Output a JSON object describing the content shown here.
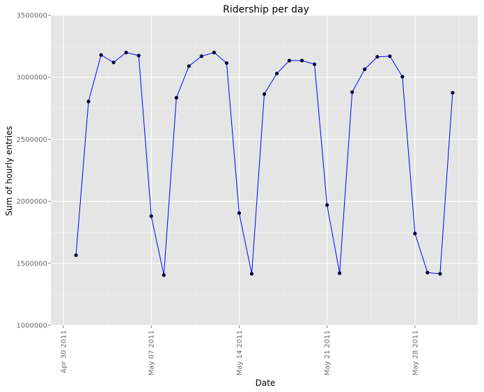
{
  "chart_data": {
    "type": "line",
    "title": "Ridership per day",
    "xlabel": "Date",
    "ylabel": "Sum of hourly entries",
    "ylim": [
      1000000,
      3500000
    ],
    "y_ticks": [
      1000000,
      1500000,
      2000000,
      2500000,
      3000000,
      3500000
    ],
    "y_tick_labels": [
      "1000000",
      "1500000",
      "2000000",
      "2500000",
      "3000000",
      "3500000"
    ],
    "x_ticks": [
      "2011-04-30",
      "2011-05-07",
      "2011-05-14",
      "2011-05-21",
      "2011-05-28"
    ],
    "x_tick_labels": [
      "Apr 30 2011",
      "May 07 2011",
      "May 14 2011",
      "May 21 2011",
      "May 28 2011"
    ],
    "xlim": [
      "2011-04-29",
      "2011-06-02"
    ],
    "grid": true,
    "line_color": "#0000ff",
    "point_color": "#000033",
    "panel_color": "#e5e5e5",
    "x": [
      "2011-05-01",
      "2011-05-02",
      "2011-05-03",
      "2011-05-04",
      "2011-05-05",
      "2011-05-06",
      "2011-05-07",
      "2011-05-08",
      "2011-05-09",
      "2011-05-10",
      "2011-05-11",
      "2011-05-12",
      "2011-05-13",
      "2011-05-14",
      "2011-05-15",
      "2011-05-16",
      "2011-05-17",
      "2011-05-18",
      "2011-05-19",
      "2011-05-20",
      "2011-05-21",
      "2011-05-22",
      "2011-05-23",
      "2011-05-24",
      "2011-05-25",
      "2011-05-26",
      "2011-05-27",
      "2011-05-28",
      "2011-05-29",
      "2011-05-30",
      "2011-05-31"
    ],
    "values": [
      1565000,
      2805000,
      3180000,
      3120000,
      3200000,
      3175000,
      1880000,
      1405000,
      2835000,
      3090000,
      3170000,
      3200000,
      3115000,
      1905000,
      1415000,
      2865000,
      3030000,
      3135000,
      3135000,
      3105000,
      1970000,
      1420000,
      2880000,
      3065000,
      3165000,
      3170000,
      3005000,
      1740000,
      1425000,
      1415000,
      2875000
    ]
  }
}
